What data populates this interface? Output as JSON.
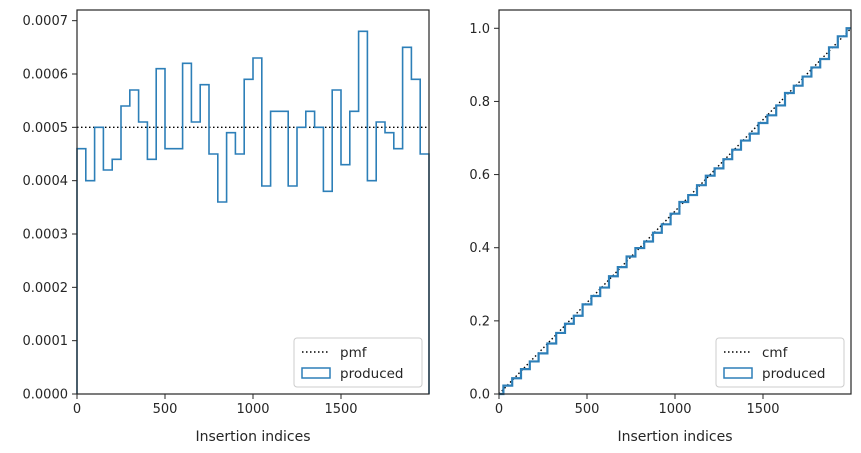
{
  "chart_data": [
    {
      "type": "step",
      "xlabel": "Insertion indices",
      "ylabel": "",
      "xlim": [
        0,
        2000
      ],
      "ylim": [
        0,
        0.00072
      ],
      "xticks": [
        "0",
        "500",
        "1000",
        "1500"
      ],
      "xtick_values": [
        0,
        500,
        1000,
        1500
      ],
      "yticks": [
        "0.0000",
        "0.0001",
        "0.0002",
        "0.0003",
        "0.0004",
        "0.0005",
        "0.0006",
        "0.0007"
      ],
      "ytick_values": [
        0,
        0.0001,
        0.0002,
        0.0003,
        0.0004,
        0.0005,
        0.0006,
        0.0007
      ],
      "legend_position": "lower-right",
      "series": [
        {
          "name": "pmf",
          "style": "dotted",
          "color": "#000000",
          "x": [
            0,
            2000
          ],
          "y": [
            0.0005,
            0.0005
          ]
        },
        {
          "name": "produced",
          "style": "step-histogram",
          "color": "#2d7fb8",
          "bin_width": 50,
          "bin_edges_start": 0,
          "values": [
            0.00046,
            0.0004,
            0.0005,
            0.00042,
            0.00044,
            0.00054,
            0.00057,
            0.00051,
            0.00044,
            0.00061,
            0.00046,
            0.00046,
            0.00062,
            0.00051,
            0.00058,
            0.00045,
            0.00036,
            0.00049,
            0.00045,
            0.00059,
            0.00063,
            0.00039,
            0.00053,
            0.00053,
            0.00039,
            0.0005,
            0.00053,
            0.0005,
            0.00038,
            0.00057,
            0.00043,
            0.00053,
            0.00068,
            0.0004,
            0.00051,
            0.00049,
            0.00046,
            0.00065,
            0.00059,
            0.00045
          ]
        }
      ]
    },
    {
      "type": "step",
      "xlabel": "Insertion indices",
      "ylabel": "",
      "xlim": [
        0,
        2000
      ],
      "ylim": [
        0,
        1.05
      ],
      "xticks": [
        "0",
        "500",
        "1000",
        "1500"
      ],
      "xtick_values": [
        0,
        500,
        1000,
        1500
      ],
      "yticks": [
        "0.0",
        "0.2",
        "0.4",
        "0.6",
        "0.8",
        "1.0"
      ],
      "ytick_values": [
        0,
        0.2,
        0.4,
        0.6,
        0.8,
        1.0
      ],
      "legend_position": "lower-right",
      "series": [
        {
          "name": "cmf",
          "style": "dotted",
          "color": "#000000",
          "x": [
            0,
            2000
          ],
          "y": [
            0,
            1.0
          ]
        },
        {
          "name": "produced",
          "style": "cumulative-step",
          "color": "#2d7fb8",
          "x": [
            0,
            50,
            100,
            150,
            200,
            250,
            300,
            350,
            400,
            450,
            500,
            550,
            600,
            650,
            700,
            750,
            800,
            850,
            900,
            950,
            1000,
            1050,
            1100,
            1150,
            1200,
            1250,
            1300,
            1350,
            1400,
            1450,
            1500,
            1550,
            1600,
            1650,
            1700,
            1750,
            1800,
            1850,
            1900,
            1950,
            2000
          ],
          "y": [
            0,
            0.023,
            0.043,
            0.068,
            0.089,
            0.111,
            0.138,
            0.167,
            0.192,
            0.214,
            0.245,
            0.268,
            0.291,
            0.322,
            0.347,
            0.376,
            0.399,
            0.417,
            0.441,
            0.464,
            0.493,
            0.525,
            0.544,
            0.571,
            0.597,
            0.617,
            0.642,
            0.668,
            0.693,
            0.712,
            0.741,
            0.762,
            0.789,
            0.823,
            0.843,
            0.868,
            0.893,
            0.916,
            0.948,
            0.978,
            1.0
          ]
        }
      ]
    }
  ]
}
